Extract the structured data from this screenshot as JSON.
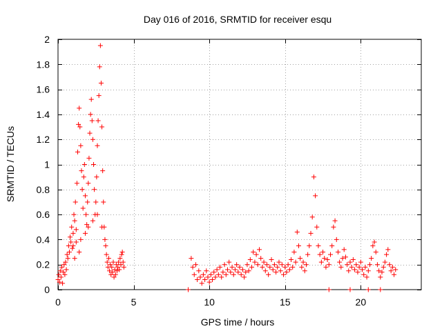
{
  "chart_data": {
    "type": "scatter",
    "title": "Day 016 of 2016, SRMTID for receiver esqu",
    "xlabel": "GPS time / hours",
    "ylabel": "SRMTID / TECUs",
    "xlim": [
      0,
      24
    ],
    "ylim": [
      0,
      2
    ],
    "x_ticks": [
      0,
      5,
      10,
      15,
      20
    ],
    "y_ticks": [
      0,
      0.2,
      0.4,
      0.6,
      0.8,
      1,
      1.2,
      1.4,
      1.6,
      1.8,
      2
    ],
    "x_tick_labels": [
      "0",
      "5",
      "10",
      "15",
      "20"
    ],
    "y_tick_labels": [
      "0",
      "0.2",
      "0.4",
      "0.6",
      "0.8",
      "1",
      "1.2",
      "1.4",
      "1.6",
      "1.8",
      "2"
    ],
    "grid": true,
    "marker": "+",
    "series": [
      {
        "name": "SRMTID",
        "color": "#ff0000",
        "points": [
          [
            0.0,
            0.08
          ],
          [
            0.05,
            0.12
          ],
          [
            0.1,
            0.06
          ],
          [
            0.15,
            0.15
          ],
          [
            0.2,
            0.1
          ],
          [
            0.25,
            0.18
          ],
          [
            0.3,
            0.05
          ],
          [
            0.35,
            0.14
          ],
          [
            0.4,
            0.2
          ],
          [
            0.45,
            0.12
          ],
          [
            0.5,
            0.22
          ],
          [
            0.55,
            0.16
          ],
          [
            0.6,
            0.28
          ],
          [
            0.65,
            0.25
          ],
          [
            0.7,
            0.35
          ],
          [
            0.75,
            0.3
          ],
          [
            0.8,
            0.42
          ],
          [
            0.85,
            0.38
          ],
          [
            0.9,
            0.5
          ],
          [
            0.95,
            0.33
          ],
          [
            1.0,
            0.45
          ],
          [
            1.05,
            0.6
          ],
          [
            1.1,
            0.55
          ],
          [
            1.15,
            0.7
          ],
          [
            1.2,
            0.48
          ],
          [
            1.25,
            0.85
          ],
          [
            1.3,
            1.1
          ],
          [
            1.35,
            1.32
          ],
          [
            1.4,
            1.45
          ],
          [
            1.45,
            1.3
          ],
          [
            1.5,
            1.15
          ],
          [
            1.55,
            0.95
          ],
          [
            1.6,
            0.8
          ],
          [
            1.65,
            0.65
          ],
          [
            1.7,
            0.9
          ],
          [
            1.75,
            1.0
          ],
          [
            1.8,
            0.75
          ],
          [
            1.85,
            0.6
          ],
          [
            1.9,
            0.52
          ],
          [
            1.95,
            0.7
          ],
          [
            2.0,
            0.85
          ],
          [
            2.05,
            1.05
          ],
          [
            2.1,
            1.25
          ],
          [
            2.15,
            1.4
          ],
          [
            2.2,
            1.52
          ],
          [
            2.25,
            1.35
          ],
          [
            2.3,
            1.2
          ],
          [
            2.35,
            1.0
          ],
          [
            2.4,
            0.8
          ],
          [
            2.45,
            0.6
          ],
          [
            2.5,
            0.7
          ],
          [
            2.55,
            0.9
          ],
          [
            2.6,
            1.15
          ],
          [
            2.65,
            1.35
          ],
          [
            2.7,
            1.55
          ],
          [
            2.75,
            1.78
          ],
          [
            2.8,
            1.95
          ],
          [
            2.85,
            1.65
          ],
          [
            2.9,
            1.3
          ],
          [
            2.95,
            0.95
          ],
          [
            3.0,
            0.7
          ],
          [
            3.05,
            0.5
          ],
          [
            3.1,
            0.4
          ],
          [
            3.15,
            0.35
          ],
          [
            3.2,
            0.28
          ],
          [
            3.25,
            0.22
          ],
          [
            3.3,
            0.18
          ],
          [
            3.35,
            0.25
          ],
          [
            3.4,
            0.15
          ],
          [
            3.45,
            0.2
          ],
          [
            3.5,
            0.12
          ],
          [
            3.55,
            0.18
          ],
          [
            3.6,
            0.14
          ],
          [
            3.65,
            0.22
          ],
          [
            3.7,
            0.1
          ],
          [
            3.75,
            0.16
          ],
          [
            3.8,
            0.12
          ],
          [
            3.85,
            0.2
          ],
          [
            3.9,
            0.15
          ],
          [
            3.95,
            0.18
          ],
          [
            4.0,
            0.22
          ],
          [
            4.05,
            0.16
          ],
          [
            4.1,
            0.25
          ],
          [
            4.15,
            0.2
          ],
          [
            4.2,
            0.28
          ],
          [
            4.25,
            0.3
          ],
          [
            4.3,
            0.22
          ],
          [
            4.35,
            0.18
          ],
          [
            1.0,
            0.35
          ],
          [
            1.2,
            0.38
          ],
          [
            1.5,
            0.4
          ],
          [
            1.8,
            0.45
          ],
          [
            2.0,
            0.5
          ],
          [
            2.3,
            0.55
          ],
          [
            2.6,
            0.6
          ],
          [
            2.9,
            0.5
          ],
          [
            1.1,
            0.25
          ],
          [
            1.4,
            0.3
          ],
          [
            8.6,
            0.0
          ],
          [
            8.8,
            0.25
          ],
          [
            8.9,
            0.18
          ],
          [
            9.0,
            0.12
          ],
          [
            9.1,
            0.2
          ],
          [
            9.2,
            0.08
          ],
          [
            9.3,
            0.15
          ],
          [
            9.4,
            0.1
          ],
          [
            9.5,
            0.05
          ],
          [
            9.6,
            0.12
          ],
          [
            9.7,
            0.08
          ],
          [
            9.8,
            0.15
          ],
          [
            9.9,
            0.1
          ],
          [
            10.0,
            0.06
          ],
          [
            10.1,
            0.12
          ],
          [
            10.2,
            0.08
          ],
          [
            10.3,
            0.14
          ],
          [
            10.4,
            0.1
          ],
          [
            10.5,
            0.16
          ],
          [
            10.6,
            0.12
          ],
          [
            10.7,
            0.18
          ],
          [
            10.8,
            0.1
          ],
          [
            10.9,
            0.14
          ],
          [
            11.0,
            0.2
          ],
          [
            11.1,
            0.12
          ],
          [
            11.2,
            0.16
          ],
          [
            11.3,
            0.22
          ],
          [
            11.4,
            0.14
          ],
          [
            11.5,
            0.18
          ],
          [
            11.6,
            0.12
          ],
          [
            11.7,
            0.16
          ],
          [
            11.8,
            0.2
          ],
          [
            11.9,
            0.14
          ],
          [
            12.0,
            0.18
          ],
          [
            12.1,
            0.12
          ],
          [
            12.2,
            0.16
          ],
          [
            12.3,
            0.1
          ],
          [
            12.4,
            0.14
          ],
          [
            12.5,
            0.2
          ],
          [
            12.6,
            0.15
          ],
          [
            12.7,
            0.24
          ],
          [
            12.8,
            0.18
          ],
          [
            12.9,
            0.3
          ],
          [
            13.0,
            0.22
          ],
          [
            13.1,
            0.28
          ],
          [
            13.2,
            0.2
          ],
          [
            13.3,
            0.32
          ],
          [
            13.4,
            0.25
          ],
          [
            13.5,
            0.18
          ],
          [
            13.6,
            0.22
          ],
          [
            13.7,
            0.15
          ],
          [
            13.8,
            0.2
          ],
          [
            13.9,
            0.12
          ],
          [
            14.0,
            0.18
          ],
          [
            14.1,
            0.24
          ],
          [
            14.2,
            0.16
          ],
          [
            14.3,
            0.2
          ],
          [
            14.4,
            0.14
          ],
          [
            14.5,
            0.18
          ],
          [
            14.6,
            0.22
          ],
          [
            14.7,
            0.15
          ],
          [
            14.8,
            0.2
          ],
          [
            14.9,
            0.12
          ],
          [
            15.0,
            0.18
          ],
          [
            15.1,
            0.14
          ],
          [
            15.2,
            0.2
          ],
          [
            15.3,
            0.16
          ],
          [
            15.4,
            0.24
          ],
          [
            15.5,
            0.18
          ],
          [
            15.6,
            0.3
          ],
          [
            15.7,
            0.22
          ],
          [
            15.8,
            0.46
          ],
          [
            15.9,
            0.35
          ],
          [
            16.0,
            0.25
          ],
          [
            16.1,
            0.18
          ],
          [
            16.2,
            0.22
          ],
          [
            16.3,
            0.15
          ],
          [
            16.4,
            0.2
          ],
          [
            16.5,
            0.28
          ],
          [
            16.6,
            0.35
          ],
          [
            16.7,
            0.45
          ],
          [
            16.8,
            0.58
          ],
          [
            16.9,
            0.9
          ],
          [
            17.0,
            0.75
          ],
          [
            17.1,
            0.5
          ],
          [
            17.2,
            0.35
          ],
          [
            17.3,
            0.28
          ],
          [
            17.4,
            0.22
          ],
          [
            17.5,
            0.3
          ],
          [
            17.6,
            0.25
          ],
          [
            17.7,
            0.18
          ],
          [
            17.8,
            0.24
          ],
          [
            17.9,
            0.2
          ],
          [
            18.0,
            0.28
          ],
          [
            18.1,
            0.35
          ],
          [
            18.2,
            0.5
          ],
          [
            18.3,
            0.55
          ],
          [
            18.4,
            0.4
          ],
          [
            18.5,
            0.3
          ],
          [
            18.6,
            0.22
          ],
          [
            18.7,
            0.18
          ],
          [
            18.8,
            0.25
          ],
          [
            18.9,
            0.32
          ],
          [
            19.0,
            0.26
          ],
          [
            19.1,
            0.2
          ],
          [
            19.2,
            0.15
          ],
          [
            19.3,
            0.22
          ],
          [
            19.4,
            0.18
          ],
          [
            19.5,
            0.24
          ],
          [
            19.6,
            0.16
          ],
          [
            19.7,
            0.2
          ],
          [
            19.8,
            0.14
          ],
          [
            19.9,
            0.18
          ],
          [
            20.0,
            0.22
          ],
          [
            20.1,
            0.16
          ],
          [
            20.2,
            0.12
          ],
          [
            20.3,
            0.18
          ],
          [
            20.4,
            0.1
          ],
          [
            20.5,
            0.15
          ],
          [
            20.6,
            0.2
          ],
          [
            20.7,
            0.25
          ],
          [
            20.8,
            0.35
          ],
          [
            20.9,
            0.38
          ],
          [
            21.0,
            0.3
          ],
          [
            21.1,
            0.2
          ],
          [
            21.2,
            0.15
          ],
          [
            21.3,
            0.1
          ],
          [
            21.4,
            0.14
          ],
          [
            21.5,
            0.18
          ],
          [
            21.6,
            0.22
          ],
          [
            21.7,
            0.28
          ],
          [
            21.8,
            0.32
          ],
          [
            21.9,
            0.2
          ],
          [
            22.0,
            0.15
          ],
          [
            22.1,
            0.18
          ],
          [
            22.2,
            0.12
          ],
          [
            22.3,
            0.16
          ],
          [
            17.9,
            0.0
          ],
          [
            19.3,
            0.0
          ],
          [
            20.5,
            0.0
          ],
          [
            21.3,
            0.0
          ]
        ]
      }
    ]
  }
}
